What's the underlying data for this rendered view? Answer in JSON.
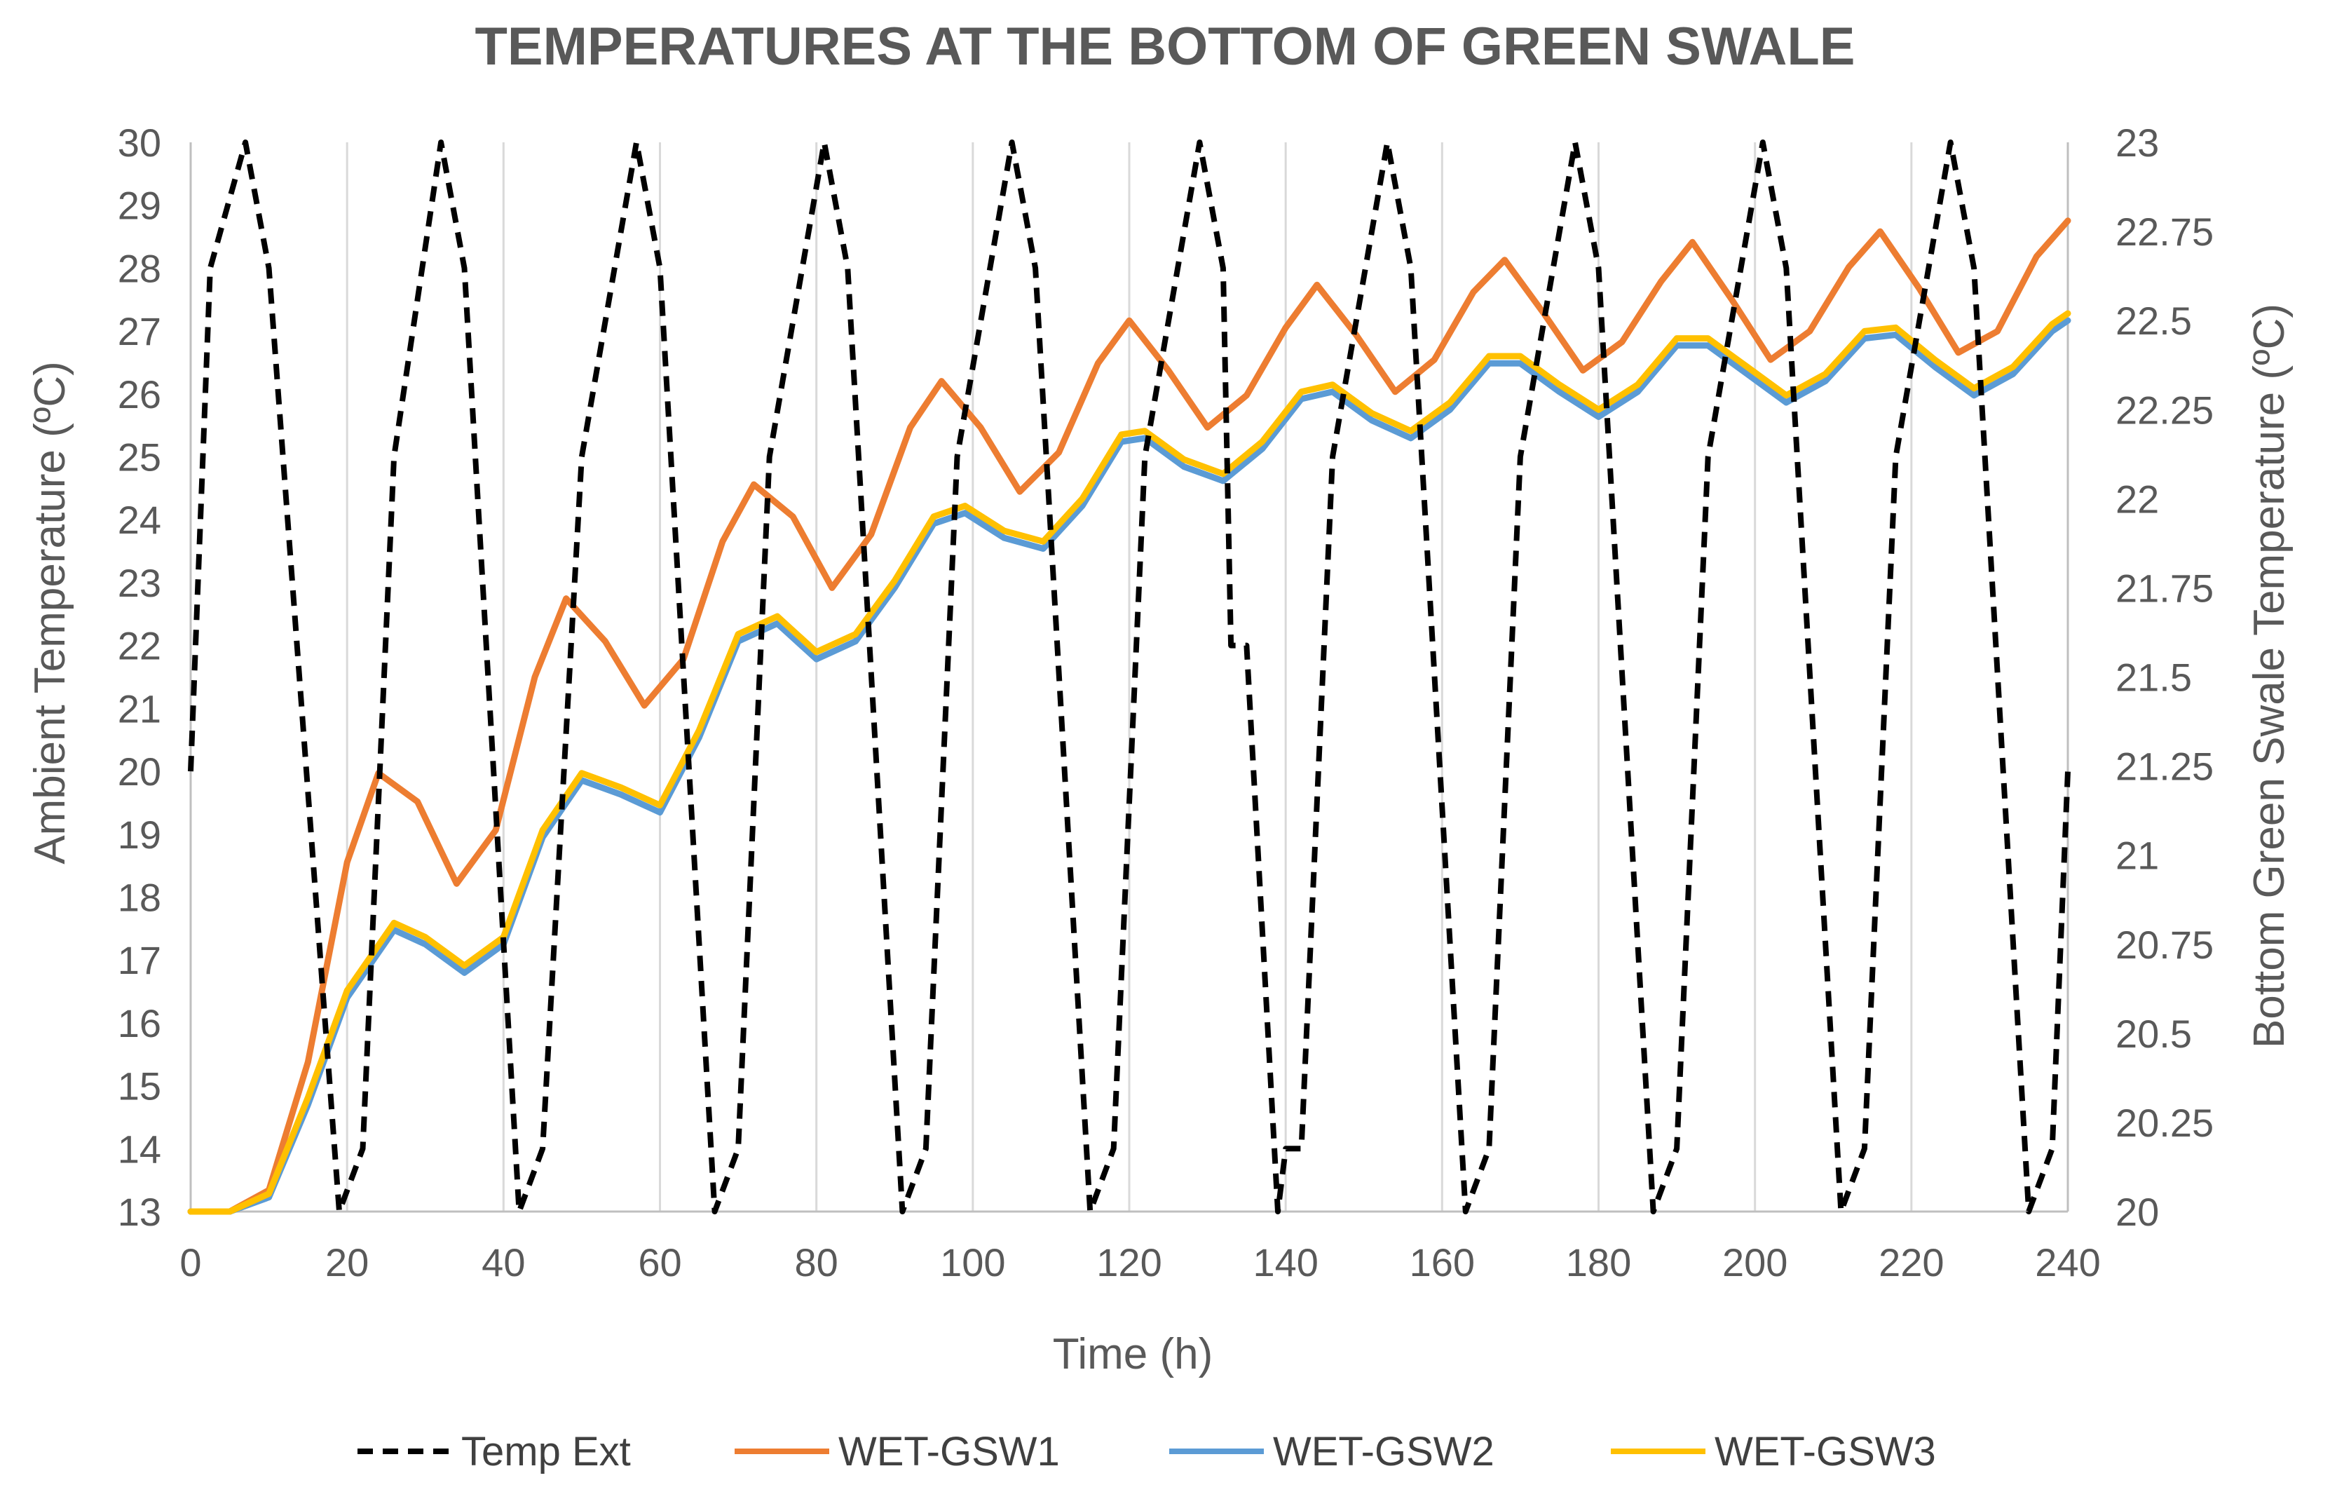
{
  "chart_data": {
    "type": "line",
    "title": "TEMPERATURES AT THE BOTTOM OF GREEN SWALE",
    "xlabel": "Time (h)",
    "ylabel": "Ambient Temperature (ºC)",
    "y2label": "Bottom Green Swale Temperature (ºC)",
    "xlim": [
      0,
      240
    ],
    "ylim": [
      13,
      30
    ],
    "y2lim": [
      20,
      23
    ],
    "x_ticks": [
      "0",
      "20",
      "40",
      "60",
      "80",
      "100",
      "120",
      "140",
      "160",
      "180",
      "200",
      "220",
      "240"
    ],
    "y_ticks": [
      "13",
      "14",
      "15",
      "16",
      "17",
      "18",
      "19",
      "20",
      "21",
      "22",
      "23",
      "24",
      "25",
      "26",
      "27",
      "28",
      "29",
      "30"
    ],
    "y2_ticks": [
      "20",
      "20.25",
      "20.5",
      "20.75",
      "21",
      "21.25",
      "21.5",
      "21.75",
      "22",
      "22.25",
      "22.5",
      "22.75",
      "23"
    ],
    "grid": "vertical",
    "legend_position": "bottom",
    "colors": {
      "Temp Ext": "#000000",
      "WET-GSW1": "#ED7D31",
      "WET-GSW2": "#5B9BD5",
      "WET-GSW3": "#FFC000",
      "text": "#595959",
      "grid": "#D9D9D9"
    },
    "series": [
      {
        "name": "Temp Ext",
        "axis": "left",
        "style": "dashed",
        "x": [
          0,
          2.5,
          7,
          10,
          19,
          22,
          26,
          32,
          35,
          42,
          45,
          50,
          57,
          60,
          67,
          70,
          74,
          81,
          84,
          91,
          94,
          98,
          105,
          108,
          115,
          118,
          122,
          129,
          132,
          133,
          135,
          139,
          140,
          142,
          146,
          153,
          156,
          163,
          166,
          170,
          177,
          180,
          187,
          190,
          194,
          201,
          204,
          211,
          214,
          218,
          225,
          228,
          235,
          238,
          240
        ],
        "values": [
          20,
          28,
          30,
          28,
          13,
          14,
          25,
          30,
          28,
          13,
          14,
          25,
          30,
          28,
          13,
          14,
          25,
          30,
          28,
          13,
          14,
          25,
          30,
          28,
          13,
          14,
          25,
          30,
          28,
          22,
          22,
          13,
          14,
          14,
          25,
          30,
          28,
          13,
          14,
          25,
          30,
          28,
          13,
          14,
          25,
          30,
          28,
          13,
          14,
          25,
          30,
          28,
          13,
          14,
          20
        ]
      },
      {
        "name": "WET-GSW1",
        "axis": "right",
        "x": [
          0,
          5,
          10,
          15,
          20,
          24,
          29,
          34,
          39,
          44,
          48,
          53,
          58,
          63,
          68,
          72,
          77,
          82,
          87,
          92,
          96,
          101,
          106,
          111,
          116,
          120,
          125,
          130,
          135,
          140,
          144,
          149,
          154,
          159,
          164,
          168,
          173,
          178,
          183,
          188,
          192,
          197,
          202,
          207,
          212,
          216,
          221,
          226,
          231,
          236,
          240
        ],
        "values": [
          20,
          20,
          20.06,
          20.42,
          20.98,
          21.23,
          21.15,
          20.92,
          21.07,
          21.5,
          21.72,
          21.6,
          21.42,
          21.55,
          21.88,
          22.04,
          21.95,
          21.75,
          21.9,
          22.2,
          22.33,
          22.2,
          22.02,
          22.13,
          22.38,
          22.5,
          22.36,
          22.2,
          22.29,
          22.48,
          22.6,
          22.46,
          22.3,
          22.39,
          22.58,
          22.67,
          22.52,
          22.36,
          22.44,
          22.61,
          22.72,
          22.56,
          22.39,
          22.47,
          22.65,
          22.75,
          22.59,
          22.41,
          22.47,
          22.68,
          22.78
        ]
      },
      {
        "name": "WET-GSW2",
        "axis": "right",
        "x": [
          0,
          5,
          10,
          15,
          20,
          26,
          30,
          35,
          40,
          45,
          50,
          55,
          60,
          65,
          70,
          75,
          80,
          85,
          90,
          95,
          99,
          104,
          109,
          114,
          119,
          122,
          127,
          132,
          137,
          142,
          146,
          151,
          156,
          161,
          166,
          170,
          175,
          180,
          185,
          190,
          194,
          199,
          204,
          209,
          214,
          218,
          223,
          228,
          233,
          238,
          240
        ],
        "values": [
          20,
          20,
          20.04,
          20.3,
          20.6,
          20.79,
          20.75,
          20.67,
          20.75,
          21.05,
          21.21,
          21.17,
          21.12,
          21.33,
          21.6,
          21.65,
          21.55,
          21.6,
          21.75,
          21.93,
          21.96,
          21.89,
          21.86,
          21.98,
          22.16,
          22.17,
          22.09,
          22.05,
          22.14,
          22.28,
          22.3,
          22.22,
          22.17,
          22.25,
          22.38,
          22.38,
          22.3,
          22.23,
          22.3,
          22.43,
          22.43,
          22.35,
          22.27,
          22.33,
          22.45,
          22.46,
          22.37,
          22.29,
          22.35,
          22.47,
          22.5
        ]
      },
      {
        "name": "WET-GSW3",
        "axis": "right",
        "x": [
          0,
          5,
          10,
          15,
          20,
          26,
          30,
          35,
          40,
          45,
          50,
          55,
          60,
          65,
          70,
          75,
          80,
          85,
          90,
          95,
          99,
          104,
          109,
          114,
          119,
          122,
          127,
          132,
          137,
          142,
          146,
          151,
          156,
          161,
          166,
          170,
          175,
          180,
          185,
          190,
          194,
          199,
          204,
          209,
          214,
          218,
          223,
          228,
          233,
          238,
          240
        ],
        "values": [
          20,
          20,
          20.05,
          20.32,
          20.62,
          20.81,
          20.77,
          20.69,
          20.77,
          21.07,
          21.23,
          21.19,
          21.14,
          21.35,
          21.62,
          21.67,
          21.57,
          21.62,
          21.77,
          21.95,
          21.98,
          21.91,
          21.88,
          22,
          22.18,
          22.19,
          22.11,
          22.07,
          22.16,
          22.3,
          22.32,
          22.24,
          22.19,
          22.27,
          22.4,
          22.4,
          22.32,
          22.25,
          22.32,
          22.45,
          22.45,
          22.37,
          22.29,
          22.35,
          22.47,
          22.48,
          22.39,
          22.31,
          22.37,
          22.49,
          22.52
        ]
      }
    ]
  }
}
